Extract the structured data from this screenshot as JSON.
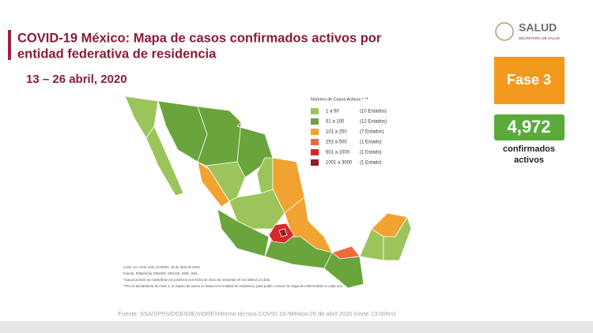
{
  "header": {
    "title_lines": [
      "COVID-19 México: Mapa de casos confirmados activos por",
      "entidad federativa de residencia"
    ],
    "date": "13 – 26 abril, 2020"
  },
  "logo": {
    "name": "SALUD",
    "subtitle": "SECRETARÍA DE SALUD"
  },
  "phase": {
    "label": "Fase 3",
    "color": "#f39a1e"
  },
  "count": {
    "value": "4,972",
    "color": "#5aab3c",
    "caption_lines": [
      "confirmados",
      "activos"
    ]
  },
  "legend": {
    "title": "Número de Casos Activos * **",
    "items": [
      {
        "range": "1 a 50",
        "states": "(10 Estados)",
        "color": "#9bc55a"
      },
      {
        "range": "51 a 100",
        "states": "(12 Estados)",
        "color": "#6aa43c"
      },
      {
        "range": "101 a 250",
        "states": "(7 Estados)",
        "color": "#f2a230"
      },
      {
        "range": "251 a 500",
        "states": "(1 Estado)",
        "color": "#ee6a3c"
      },
      {
        "range": "501 a 1000",
        "states": "(1 Estado)",
        "color": "#d8282a"
      },
      {
        "range": "1001 a 3000",
        "states": "(1 Estado)",
        "color": "#8e1c20"
      }
    ]
  },
  "notes": [
    "Corte con corte a las 13:00hrs, 26 de abril de 2020",
    "Fuente: Plataforma SISVER, SINAVE, DGE, SSa.",
    "*Casos activos se consideran los positivos con fecha de inicio de síntomas en los últimos 14 días.",
    "**Por la declaratoria de Fase 3, el mapeo de casos se basa en la entidad de residencia, para poder conocer la carga de enfermedad en cada una."
  ],
  "footer": {
    "source": "Fuente: SSA/SPPS/DGE/DIE/InDRE/Informe técnico.COVID-19 /México-26 de abril 2020 (corte 13:00hrs)"
  }
}
